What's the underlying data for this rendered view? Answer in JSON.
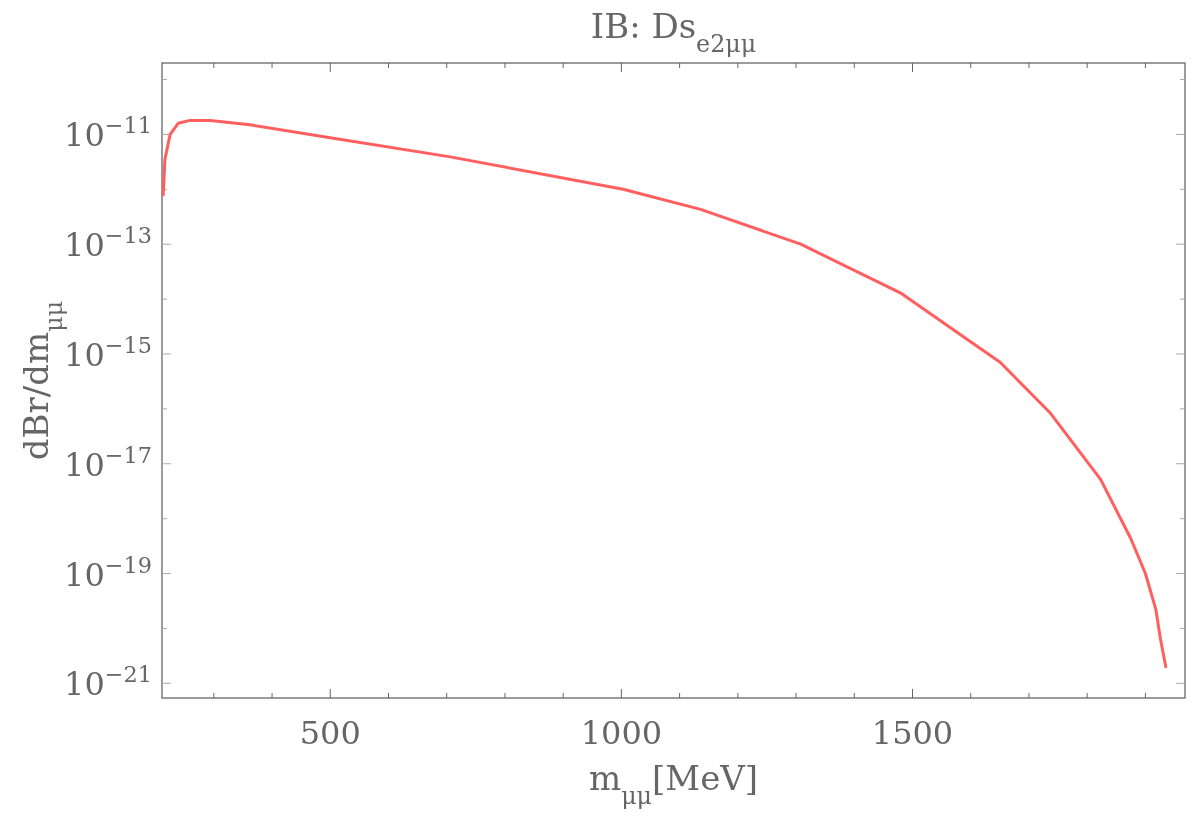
{
  "chart_data": {
    "type": "line",
    "title": "IB: Ds$_{e2μμ}$",
    "xlabel": "m$_{μμ}$[MeV]",
    "ylabel": "dBr/dm$_{μμ}$",
    "log": "y",
    "grid": false,
    "marker": "none",
    "line_style": "solid",
    "xlim": [
      211,
      1968
    ],
    "xticks": [
      {
        "value": 300,
        "label": null
      },
      {
        "value": 400,
        "label": null
      },
      500,
      {
        "value": 600,
        "label": null
      },
      {
        "value": 700,
        "label": null
      },
      {
        "value": 800,
        "label": null
      },
      {
        "value": 900,
        "label": null
      },
      1000,
      {
        "value": 1100,
        "label": null
      },
      {
        "value": 1200,
        "label": null
      },
      {
        "value": 1300,
        "label": null
      },
      {
        "value": 1400,
        "label": null
      },
      1500,
      {
        "value": 1600,
        "label": null
      },
      {
        "value": 1700,
        "label": null
      },
      {
        "value": 1800,
        "label": null
      },
      {
        "value": 1900,
        "label": null
      }
    ],
    "ylim": [
      5.4e-22,
      2e-10
    ],
    "yticks": [
      {
        "value": 1e-10,
        "label": null
      },
      {
        "value": 1e-11,
        "label": "10$^{−11}$"
      },
      {
        "value": 1e-12,
        "label": null
      },
      {
        "value": 1e-13,
        "label": "10$^{−13}$"
      },
      {
        "value": 1e-14,
        "label": null
      },
      {
        "value": 1e-15,
        "label": "10$^{−15}$"
      },
      {
        "value": 1e-16,
        "label": null
      },
      {
        "value": 1e-17,
        "label": "10$^{−17}$"
      },
      {
        "value": 1e-18,
        "label": null
      },
      {
        "value": 1e-19,
        "label": "10$^{−19}$"
      },
      {
        "value": 1e-20,
        "label": null
      },
      {
        "value": 1e-21,
        "label": "10$^{−21}$"
      }
    ],
    "x": [
      213,
      216,
      225,
      239,
      259,
      294,
      362,
      500,
      706,
      1003,
      1136,
      1308,
      1479,
      1651,
      1737,
      1823,
      1875,
      1900,
      1918,
      1926,
      1935
    ],
    "series": [
      {
        "color": "#ff5f5f",
        "values": [
          7.9e-13,
          3.5e-12,
          1e-11,
          1.6e-11,
          1.8e-11,
          1.8e-11,
          1.5e-11,
          8.7e-12,
          3.9e-12,
          1e-12,
          4.3e-13,
          1e-13,
          1.3e-14,
          7e-16,
          8.3e-17,
          5.2e-18,
          4.3e-19,
          1e-19,
          2.2e-20,
          6.3e-21,
          2e-21
        ]
      }
    ]
  }
}
